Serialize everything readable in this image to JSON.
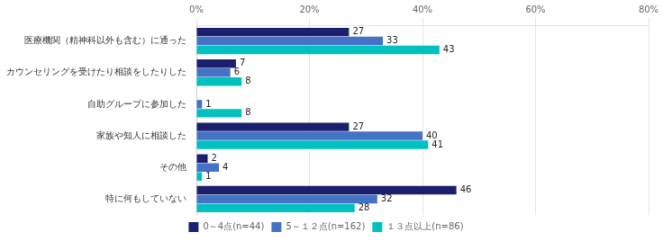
{
  "chart_data": {
    "type": "bar",
    "orientation": "horizontal",
    "categories": [
      "医療機関（精神科以外も含む）に通った",
      "カウンセリングを受けたり相談をしたりした",
      "自助グループに参加した",
      "家族や知人に相談した",
      "その他",
      "特に何もしていない"
    ],
    "series": [
      {
        "name": "0～4点(n=44)",
        "color": "#1a1f6e",
        "values": [
          27,
          7,
          0,
          27,
          2,
          46
        ]
      },
      {
        "name": "5～１２点(n=162)",
        "color": "#4472c4",
        "values": [
          33,
          6,
          1,
          40,
          4,
          32
        ]
      },
      {
        "name": "１３点以上(n=86)",
        "color": "#00c0c0",
        "values": [
          43,
          8,
          8,
          41,
          1,
          28
        ]
      }
    ],
    "xlim": [
      0,
      80
    ],
    "xticks": [
      {
        "value": 0,
        "label": "0%"
      },
      {
        "value": 20,
        "label": "20%"
      },
      {
        "value": 40,
        "label": "40%"
      },
      {
        "value": 60,
        "label": "60%"
      },
      {
        "value": 80,
        "label": "80%"
      }
    ],
    "grid": true,
    "legend": "bottom",
    "data_labels": true
  }
}
